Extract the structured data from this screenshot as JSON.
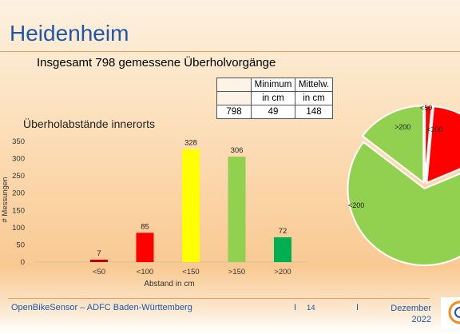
{
  "slide": {
    "title": "Heidenheim",
    "subtitle": "Insgesamt 798 gemessene Überholvorgänge"
  },
  "stats_table": {
    "header": [
      "",
      "Minimum",
      "Mittelw."
    ],
    "units": [
      "",
      "in cm",
      "in cm"
    ],
    "values": [
      "798",
      "49",
      "148"
    ]
  },
  "footer": {
    "left": "OpenBikeSensor – ADFC Baden-Württemberg",
    "sep1": "I",
    "page": "14",
    "sep2": "I",
    "date_line1": "Dezember",
    "date_line2": "2022"
  },
  "colors": {
    "title": "#1f56a8",
    "red_dark": "#c00000",
    "red": "#ff0000",
    "yellow": "#ffff00",
    "light_green": "#92d050",
    "green": "#00b050"
  },
  "chart_data": [
    {
      "type": "bar",
      "title": "Überholabstände innerorts",
      "xlabel": "Abstand in cm",
      "ylabel": "# Messungen",
      "categories": [
        "<50",
        "<100",
        "<150",
        ">150",
        ">200"
      ],
      "values": [
        7,
        85,
        328,
        306,
        72
      ],
      "colors": [
        "#c00000",
        "#ff0000",
        "#ffff00",
        "#92d050",
        "#00b050"
      ],
      "ylim": [
        0,
        350
      ],
      "yticks": [
        0,
        50,
        100,
        150,
        200,
        250,
        300,
        350
      ],
      "grid": false,
      "data_labels": true
    },
    {
      "type": "pie",
      "labels": [
        "<50",
        "<100",
        "<200",
        ">200"
      ],
      "values": [
        7,
        85,
        328,
        72
      ],
      "colors": [
        "#ff0000",
        "#ff0000",
        "#92d050",
        "#92d050"
      ],
      "cropped": true
    }
  ]
}
